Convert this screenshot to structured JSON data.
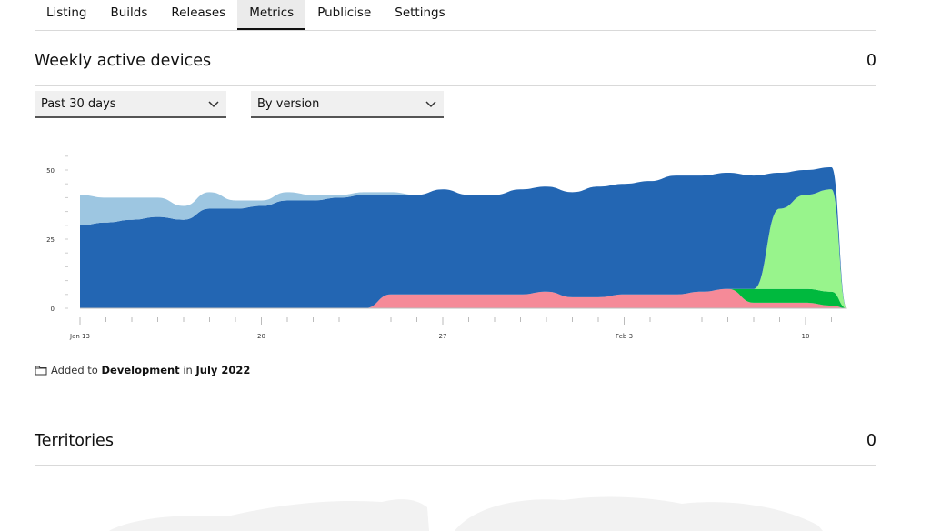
{
  "tabs": [
    {
      "label": "Listing"
    },
    {
      "label": "Builds"
    },
    {
      "label": "Releases"
    },
    {
      "label": "Metrics",
      "active": true
    },
    {
      "label": "Publicise"
    },
    {
      "label": "Settings"
    }
  ],
  "weekly": {
    "title": "Weekly active devices",
    "count": "0",
    "period_select": "Past 30 days",
    "group_select": "By version"
  },
  "chart_data": {
    "type": "area",
    "stacked": true,
    "y_ticks": [
      "50",
      "25",
      "0"
    ],
    "ylim": [
      0,
      52
    ],
    "x_labels": [
      {
        "label": "Jan 13",
        "day": 0
      },
      {
        "label": "20",
        "day": 7
      },
      {
        "label": "27",
        "day": 14
      },
      {
        "label": "Feb 3",
        "day": 21
      },
      {
        "label": "10",
        "day": 28
      }
    ],
    "days": [
      0,
      1,
      2,
      3,
      4,
      5,
      6,
      7,
      8,
      9,
      10,
      11,
      12,
      13,
      14,
      15,
      16,
      17,
      18,
      19,
      20,
      21,
      22,
      23,
      24,
      25,
      26,
      27,
      28,
      29,
      29.6
    ],
    "colors": [
      "#f58a98",
      "#00b93e",
      "#98f48c",
      "#2366b3",
      "#9dc6e1"
    ],
    "series": [
      {
        "values": [
          0,
          0,
          0,
          0,
          0,
          0,
          0,
          0,
          0,
          0,
          0,
          0,
          5,
          5,
          5,
          5,
          5,
          5,
          6,
          4,
          4,
          5,
          5,
          5,
          6,
          7,
          2,
          2,
          2,
          1,
          0
        ]
      },
      {
        "values": [
          0,
          0,
          0,
          0,
          0,
          0,
          0,
          0,
          0,
          0,
          0,
          0,
          0,
          0,
          0,
          0,
          0,
          0,
          0,
          0,
          0,
          0,
          0,
          0,
          0,
          0,
          5,
          5,
          5,
          5,
          0
        ]
      },
      {
        "values": [
          0,
          0,
          0,
          0,
          0,
          0,
          0,
          0,
          0,
          0,
          0,
          0,
          0,
          0,
          0,
          0,
          0,
          0,
          0,
          0,
          0,
          0,
          0,
          0,
          0,
          0,
          0,
          29,
          34,
          37,
          0
        ]
      },
      {
        "values": [
          30,
          31,
          32,
          33,
          32,
          36,
          36,
          37,
          39,
          39,
          40,
          41,
          36,
          36,
          38,
          36,
          36,
          38,
          38,
          38,
          40,
          40,
          41,
          43,
          42,
          42,
          41,
          13,
          9,
          8,
          0
        ]
      },
      {
        "values": [
          11,
          9,
          8,
          7,
          5,
          6,
          3,
          2,
          3,
          2,
          1,
          1,
          1,
          0,
          0,
          0,
          0,
          0,
          0,
          0,
          0,
          0,
          0,
          0,
          0,
          0,
          0,
          0,
          0,
          0,
          0
        ]
      }
    ]
  },
  "added": {
    "prefix": "Added to",
    "target": "Development",
    "mid": "in",
    "date": "July 2022"
  },
  "territories": {
    "title": "Territories",
    "count": "0"
  }
}
